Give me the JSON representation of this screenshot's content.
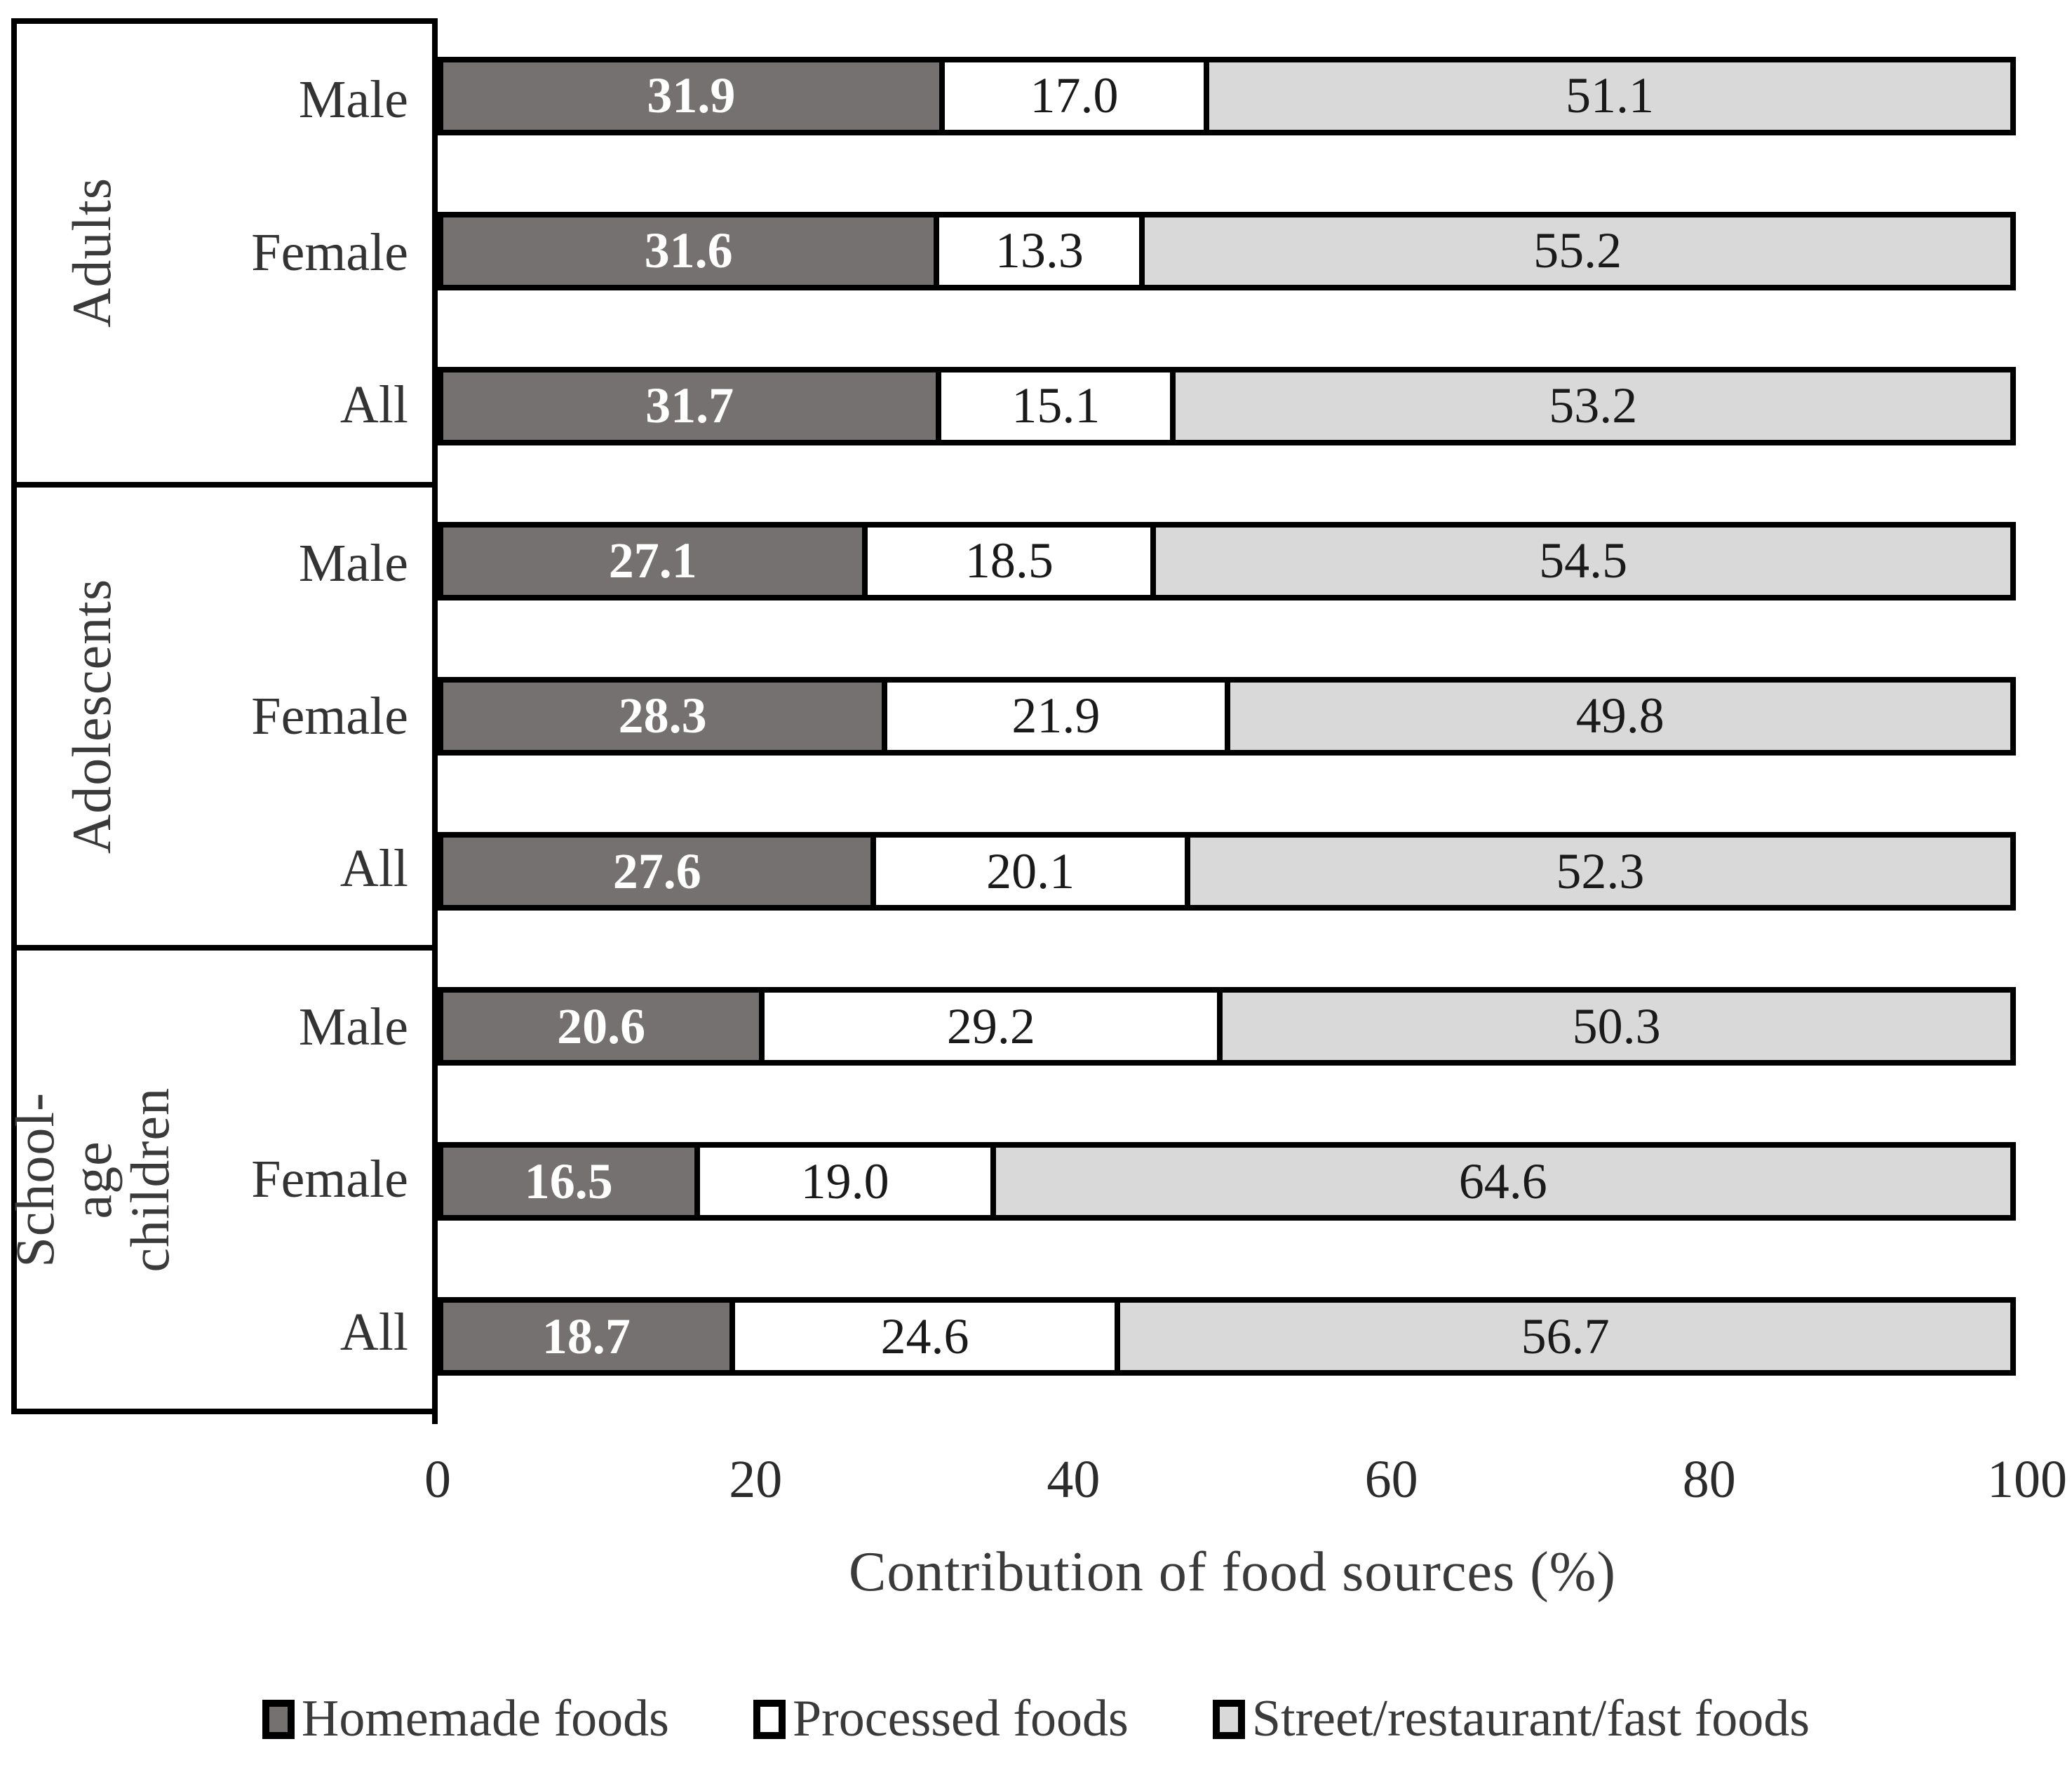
{
  "figure": {
    "x_axis_title": "Contribution of food sources (%)"
  },
  "legend": {
    "items": [
      {
        "label": "Homemade foods",
        "color": "#767171"
      },
      {
        "label": "Processed foods",
        "color": "#ffffff"
      },
      {
        "label": "Street/restaurant/fast foods",
        "color": "#d9d9d9"
      }
    ]
  },
  "chart_data": {
    "type": "bar",
    "orientation": "horizontal",
    "stacked": true,
    "xlabel": "Contribution of food sources (%)",
    "xlim": [
      0,
      100
    ],
    "x_ticks": [
      0,
      20,
      40,
      60,
      80,
      100
    ],
    "grid": false,
    "legend_position": "bottom",
    "series_names": [
      "Homemade foods",
      "Processed foods",
      "Street/restaurant/fast foods"
    ],
    "series_colors": [
      "#767171",
      "#ffffff",
      "#d9d9d9"
    ],
    "value_label_colors": [
      "#ffffff",
      "#1a1a1a",
      "#1a1a1a"
    ],
    "groups": [
      {
        "label": "Adults",
        "rows": [
          {
            "label": "Male",
            "values": [
              31.9,
              17.0,
              51.1
            ]
          },
          {
            "label": "Female",
            "values": [
              31.6,
              13.3,
              55.2
            ]
          },
          {
            "label": "All",
            "values": [
              31.7,
              15.1,
              53.2
            ]
          }
        ]
      },
      {
        "label": "Adolescents",
        "rows": [
          {
            "label": "Male",
            "values": [
              27.1,
              18.5,
              54.5
            ]
          },
          {
            "label": "Female",
            "values": [
              28.3,
              21.9,
              49.8
            ]
          },
          {
            "label": "All",
            "values": [
              27.6,
              20.1,
              52.3
            ]
          }
        ]
      },
      {
        "label": "School-age\nchildren",
        "rows": [
          {
            "label": "Male",
            "values": [
              20.6,
              29.2,
              50.3
            ]
          },
          {
            "label": "Female",
            "values": [
              16.5,
              19.0,
              64.6
            ]
          },
          {
            "label": "All",
            "values": [
              18.7,
              24.6,
              56.7
            ]
          }
        ]
      }
    ]
  }
}
